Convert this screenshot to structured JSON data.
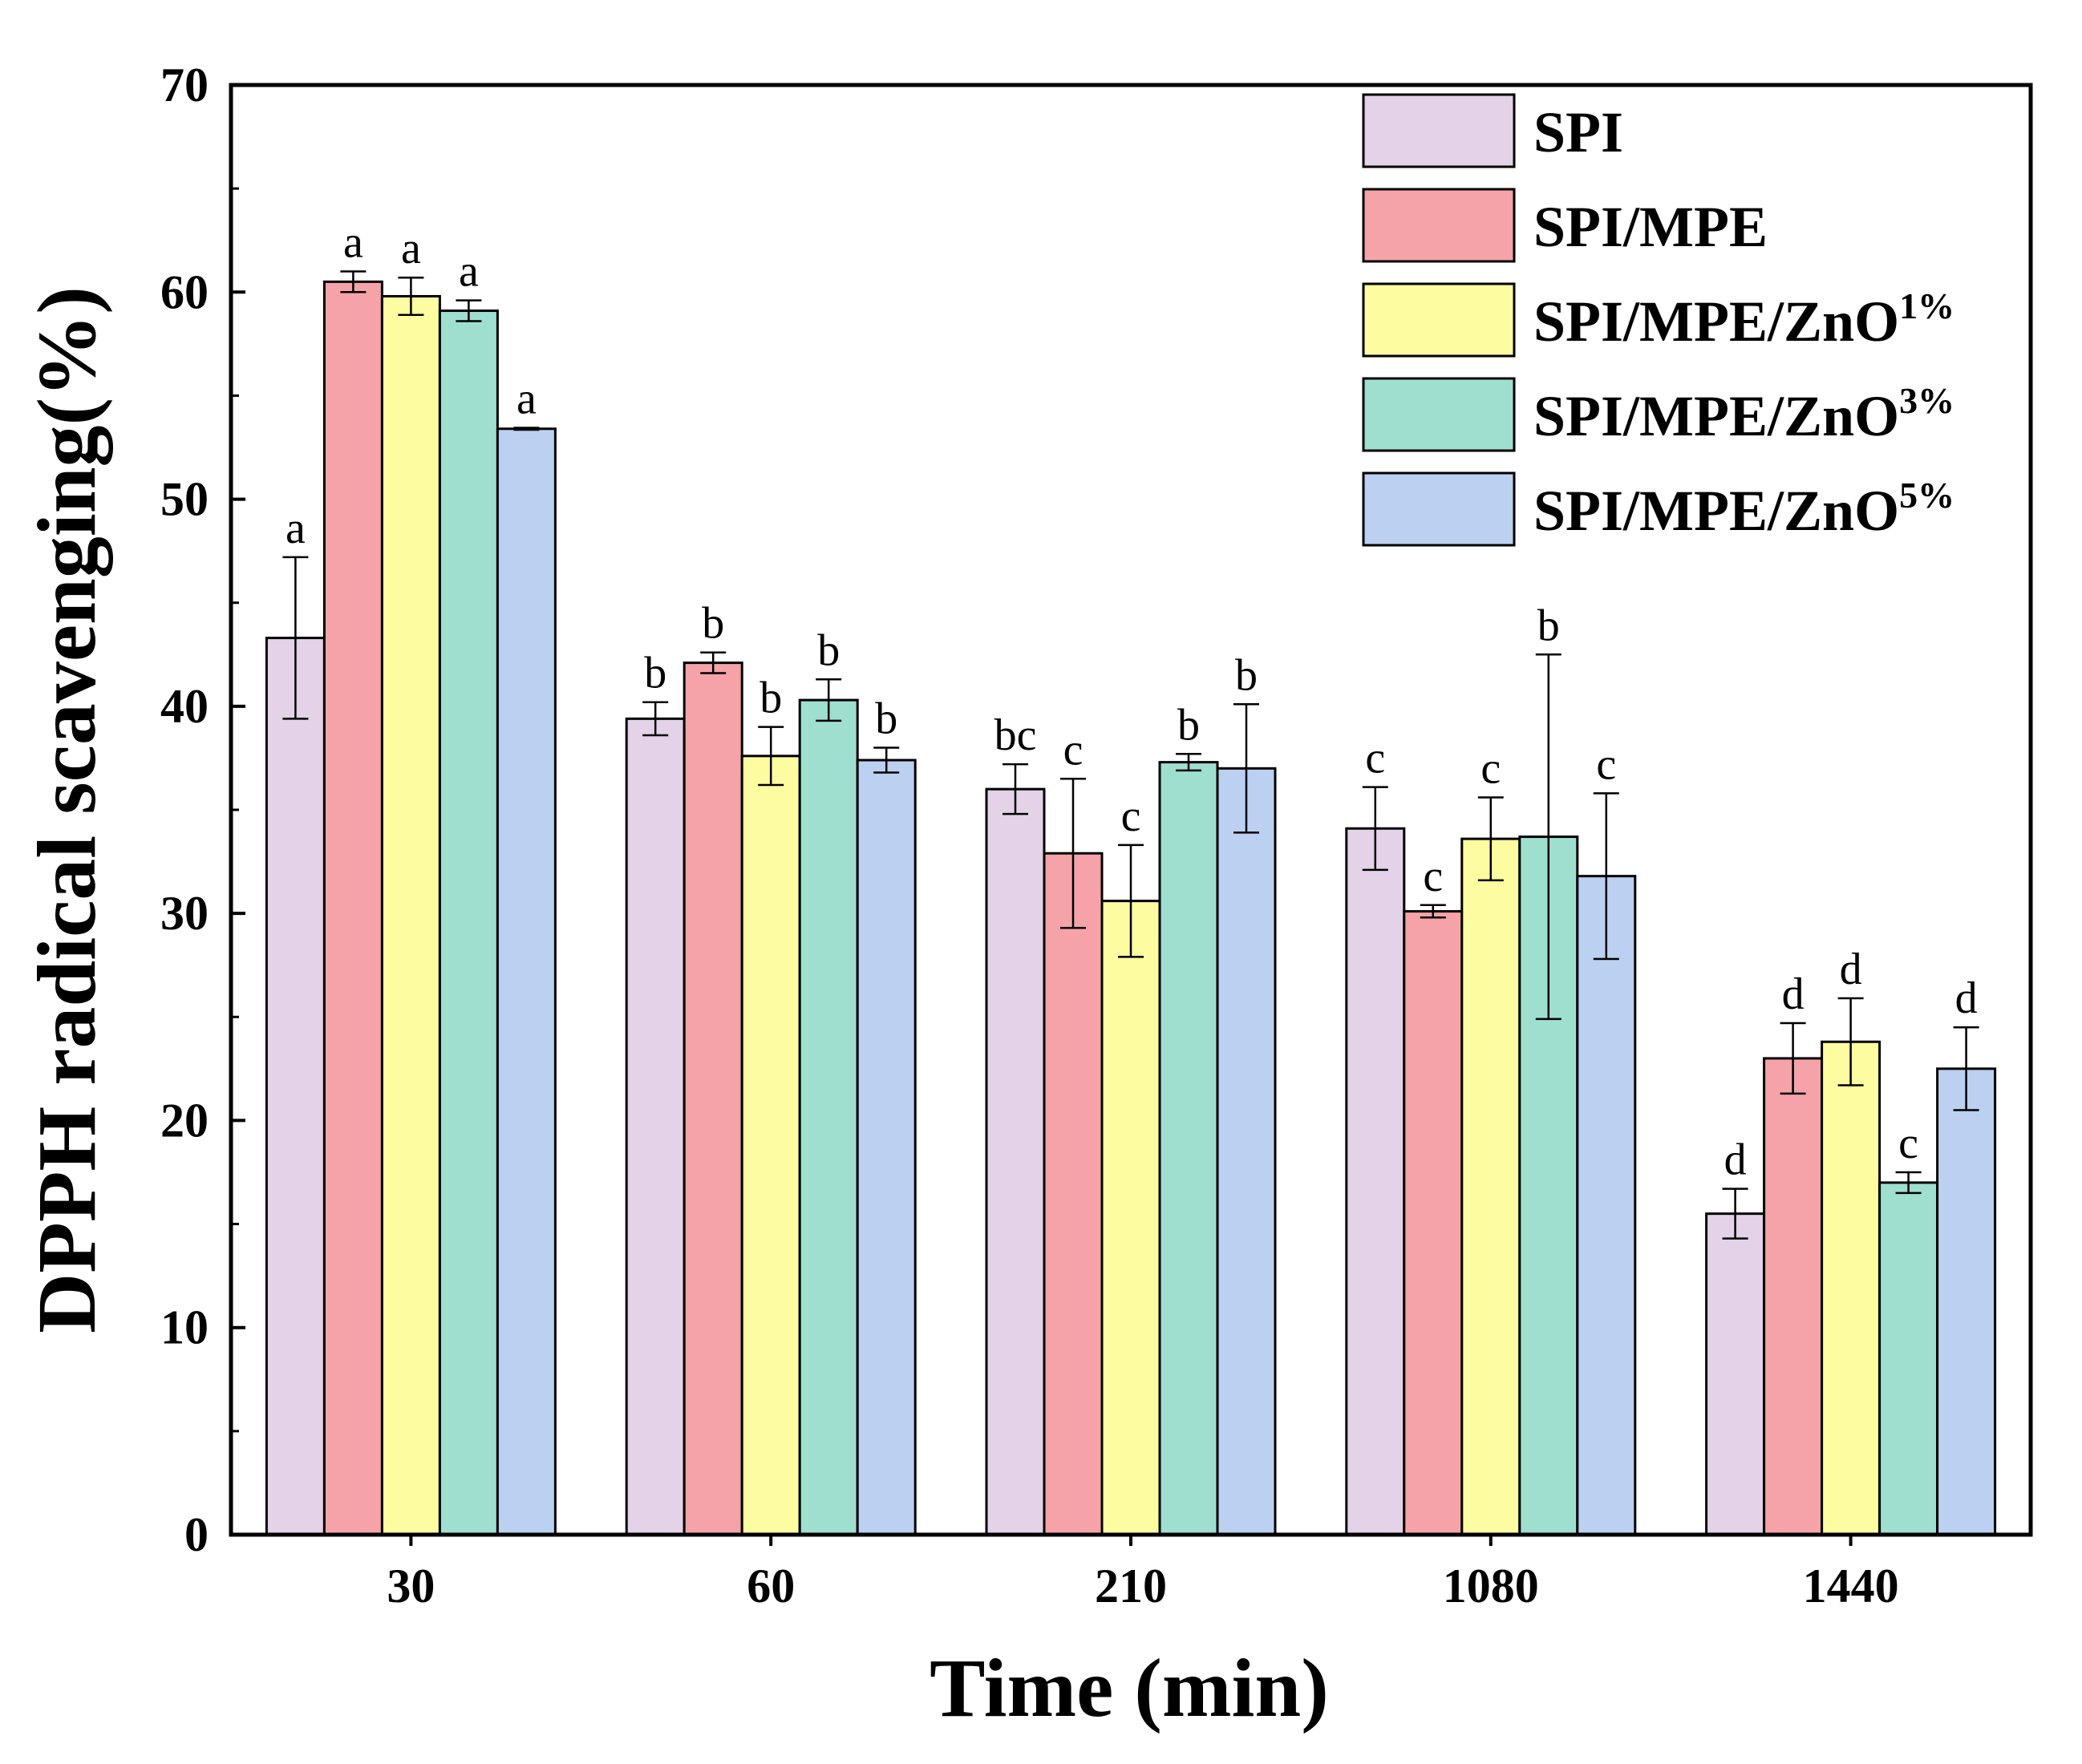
{
  "chart_data": {
    "type": "bar",
    "title": "",
    "xlabel": "Time (min)",
    "ylabel": "DPPH radical scavenging(%)",
    "categories": [
      "30",
      "60",
      "210",
      "1080",
      "1440"
    ],
    "ylim": [
      0,
      70
    ],
    "yticks": [
      0,
      10,
      20,
      30,
      40,
      50,
      60,
      70
    ],
    "legend_position": "top-right",
    "series": [
      {
        "name": "SPI",
        "color": "#e3d2e8",
        "values": [
          43.3,
          39.4,
          36.0,
          34.1,
          15.5
        ],
        "errors": [
          3.9,
          0.8,
          1.2,
          2.0,
          1.2
        ],
        "labels": [
          "a",
          "b",
          "bc",
          "c",
          "d"
        ]
      },
      {
        "name": "SPI/MPE",
        "color": "#f5a3a8",
        "values": [
          60.5,
          42.1,
          32.9,
          30.1,
          23.0
        ],
        "errors": [
          0.5,
          0.5,
          3.6,
          0.3,
          1.7
        ],
        "labels": [
          "a",
          "b",
          "c",
          "c",
          "d"
        ]
      },
      {
        "name": "SPI/MPE/ZnO",
        "sup": "1%",
        "color": "#fdfca0",
        "values": [
          59.8,
          37.6,
          30.6,
          33.6,
          23.8
        ],
        "errors": [
          0.9,
          1.4,
          2.7,
          2.0,
          2.1
        ],
        "labels": [
          "a",
          "b",
          "c",
          "c",
          "d"
        ]
      },
      {
        "name": "SPI/MPE/ZnO",
        "sup": "3%",
        "color": "#9fdfd0",
        "values": [
          59.1,
          40.3,
          37.3,
          33.7,
          17.0
        ],
        "errors": [
          0.5,
          1.0,
          0.4,
          8.8,
          0.5
        ],
        "labels": [
          "a",
          "b",
          "b",
          "b",
          "c"
        ]
      },
      {
        "name": "SPI/MPE/ZnO",
        "sup": "5%",
        "color": "#bcd0f2",
        "values": [
          53.4,
          37.4,
          37.0,
          31.8,
          22.5
        ],
        "errors": [
          0.05,
          0.6,
          3.1,
          4.0,
          2.0
        ],
        "labels": [
          "a",
          "b",
          "b",
          "c",
          "d"
        ]
      }
    ]
  }
}
